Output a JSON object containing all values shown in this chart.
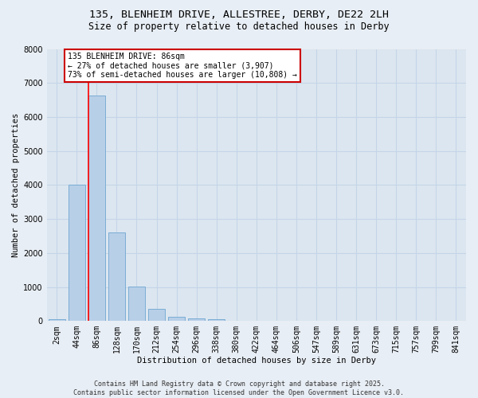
{
  "title1": "135, BLENHEIM DRIVE, ALLESTREE, DERBY, DE22 2LH",
  "title2": "Size of property relative to detached houses in Derby",
  "xlabel": "Distribution of detached houses by size in Derby",
  "ylabel": "Number of detached properties",
  "categories": [
    "2sqm",
    "44sqm",
    "86sqm",
    "128sqm",
    "170sqm",
    "212sqm",
    "254sqm",
    "296sqm",
    "338sqm",
    "380sqm",
    "422sqm",
    "464sqm",
    "506sqm",
    "547sqm",
    "589sqm",
    "631sqm",
    "673sqm",
    "715sqm",
    "757sqm",
    "799sqm",
    "841sqm"
  ],
  "values": [
    50,
    4020,
    6620,
    2600,
    1010,
    350,
    130,
    70,
    50,
    0,
    0,
    0,
    0,
    0,
    0,
    0,
    0,
    0,
    0,
    0,
    0
  ],
  "bar_color": "#b8cfe8",
  "bar_edge_color": "#7aadd4",
  "redline_index": 2,
  "annotation_text": "135 BLENHEIM DRIVE: 86sqm\n← 27% of detached houses are smaller (3,907)\n73% of semi-detached houses are larger (10,808) →",
  "annotation_box_edge_color": "#cc0000",
  "ylim": [
    0,
    8000
  ],
  "yticks": [
    0,
    1000,
    2000,
    3000,
    4000,
    5000,
    6000,
    7000,
    8000
  ],
  "bg_color": "#e8eef5",
  "plot_bg_color": "#dce6f0",
  "grid_color": "#c5d5e8",
  "copyright_text": "Contains HM Land Registry data © Crown copyright and database right 2025.\nContains public sector information licensed under the Open Government Licence v3.0.",
  "title_fontsize": 9.5,
  "subtitle_fontsize": 8.5,
  "axis_label_fontsize": 7.5,
  "tick_fontsize": 7,
  "annotation_fontsize": 7,
  "copyright_fontsize": 6
}
